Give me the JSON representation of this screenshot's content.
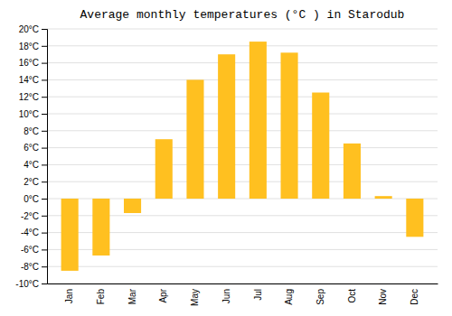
{
  "chart_data": {
    "type": "bar",
    "title": "Average monthly temperatures (°C ) in Starodub",
    "categories": [
      "Jan",
      "Feb",
      "Mar",
      "Apr",
      "May",
      "Jun",
      "Jul",
      "Aug",
      "Sep",
      "Oct",
      "Nov",
      "Dec"
    ],
    "values": [
      -8.5,
      -6.7,
      -1.7,
      7.0,
      14.0,
      17.0,
      18.5,
      17.2,
      12.5,
      6.5,
      0.3,
      -4.5
    ],
    "color": "#FFC020",
    "ylim": [
      -10,
      20
    ],
    "yticks": [
      {
        "value": -10,
        "label": "-10°C"
      },
      {
        "value": -8,
        "label": "-8°C"
      },
      {
        "value": -6,
        "label": "-6°C"
      },
      {
        "value": -4,
        "label": "-4°C"
      },
      {
        "value": -2,
        "label": "-2°C"
      },
      {
        "value": 0,
        "label": "0°C"
      },
      {
        "value": 2,
        "label": "2°C"
      },
      {
        "value": 4,
        "label": "4°C"
      },
      {
        "value": 6,
        "label": "6°C"
      },
      {
        "value": 8,
        "label": "8°C"
      },
      {
        "value": 10,
        "label": "10°C"
      },
      {
        "value": 12,
        "label": "12°C"
      },
      {
        "value": 14,
        "label": "14°C"
      },
      {
        "value": 16,
        "label": "16°C"
      },
      {
        "value": 18,
        "label": "18°C"
      },
      {
        "value": 20,
        "label": "20°C"
      }
    ],
    "grid": true
  }
}
